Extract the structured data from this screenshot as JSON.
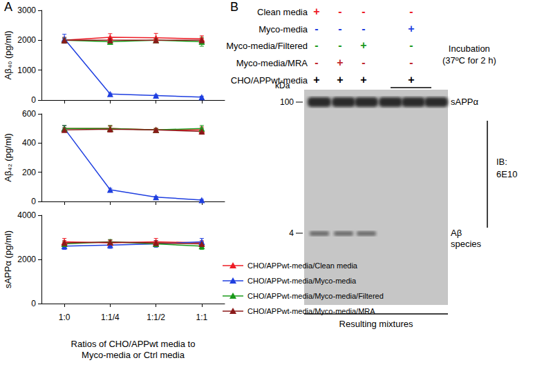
{
  "chart_data": [
    {
      "type": "line",
      "y_label": "Aβ₄₀ (pg/ml)",
      "categories": [
        null,
        null,
        null,
        null
      ],
      "ylim": [
        0,
        3000
      ],
      "yticks": [
        0,
        1000,
        2000,
        3000
      ],
      "grid": false,
      "tick_labels": "y",
      "series": [
        {
          "name": "CHO/APPwt-media/Clean media",
          "color": "#ee1c25",
          "marker": "triangle",
          "values": [
            2000,
            2100,
            2080,
            2050
          ],
          "errors": [
            100,
            120,
            150,
            100
          ]
        },
        {
          "name": "CHO/APPwt-media/Myco-media",
          "color": "#1f3fe0",
          "marker": "triangle",
          "values": [
            2050,
            200,
            150,
            100
          ],
          "errors": [
            150,
            30,
            30,
            30
          ]
        },
        {
          "name": "CHO/APPwt-media/Myco-media/Filtered",
          "color": "#1a9a1a",
          "marker": "triangle",
          "values": [
            2000,
            1950,
            2000,
            1950
          ],
          "errors": [
            80,
            80,
            80,
            150
          ]
        },
        {
          "name": "CHO/APPwt-media/Myco-media/MRA",
          "color": "#8b1a1a",
          "marker": "triangle",
          "values": [
            2000,
            2000,
            2000,
            2000
          ],
          "errors": [
            60,
            60,
            60,
            60
          ]
        }
      ]
    },
    {
      "type": "line",
      "y_label": "Aβ₄₂ (pg/ml)",
      "categories": [
        null,
        null,
        null,
        null
      ],
      "ylim": [
        0,
        600
      ],
      "yticks": [
        0,
        200,
        400,
        600
      ],
      "grid": false,
      "tick_labels": "y",
      "series": [
        {
          "name": "CHO/APPwt-media/Clean media",
          "color": "#ee1c25",
          "marker": "triangle",
          "values": [
            500,
            500,
            490,
            490
          ],
          "errors": [
            20,
            20,
            10,
            20
          ]
        },
        {
          "name": "CHO/APPwt-media/Myco-media",
          "color": "#1f3fe0",
          "marker": "triangle",
          "values": [
            500,
            80,
            30,
            10
          ],
          "errors": [
            20,
            10,
            5,
            5
          ]
        },
        {
          "name": "CHO/APPwt-media/Myco-media/Filtered",
          "color": "#1a9a1a",
          "marker": "triangle",
          "values": [
            500,
            500,
            490,
            500
          ],
          "errors": [
            20,
            20,
            10,
            20
          ]
        },
        {
          "name": "CHO/APPwt-media/Myco-media/MRA",
          "color": "#8b1a1a",
          "marker": "triangle",
          "values": [
            490,
            495,
            490,
            480
          ],
          "errors": [
            15,
            20,
            10,
            20
          ]
        }
      ]
    },
    {
      "type": "line",
      "y_label": "sAPPα (pg/ml)",
      "x_label": "Ratios of CHO/APPwt media to\nMyco-media or Ctrl media",
      "categories": [
        "1:0",
        "1:1/4",
        "1:1/2",
        "1:1"
      ],
      "ylim": [
        0,
        4000
      ],
      "yticks": [
        0,
        2000,
        4000
      ],
      "grid": false,
      "tick_labels": true,
      "series": [
        {
          "name": "CHO/APPwt-media/Clean media",
          "color": "#ee1c25",
          "marker": "triangle",
          "values": [
            2800,
            2750,
            2800,
            2750
          ],
          "errors": [
            150,
            100,
            150,
            100
          ]
        },
        {
          "name": "CHO/APPwt-media/Myco-media",
          "color": "#1f3fe0",
          "marker": "triangle",
          "values": [
            2600,
            2650,
            2700,
            2800
          ],
          "errors": [
            150,
            150,
            150,
            150
          ]
        },
        {
          "name": "CHO/APPwt-media/Myco-media/Filtered",
          "color": "#1a9a1a",
          "marker": "triangle",
          "values": [
            2700,
            2800,
            2700,
            2600
          ],
          "errors": [
            100,
            100,
            100,
            150
          ]
        },
        {
          "name": "CHO/APPwt-media/Myco-media/MRA",
          "color": "#8b1a1a",
          "marker": "triangle",
          "values": [
            2750,
            2780,
            2750,
            2700
          ],
          "errors": [
            100,
            100,
            100,
            100
          ]
        }
      ]
    }
  ],
  "panel_labels": [
    "A",
    "B"
  ],
  "blot": {
    "rows": [
      {
        "label": "Clean media",
        "color": "#ee1c25",
        "signs": [
          "+",
          "-",
          "-",
          "-"
        ]
      },
      {
        "label": "Myco-media",
        "color": "#1f3fe0",
        "signs": [
          "-",
          "-",
          "-",
          "+"
        ]
      },
      {
        "label": "Myco-media/Filtered",
        "color": "#1a9a1a",
        "signs": [
          "-",
          "-",
          "+",
          "-"
        ]
      },
      {
        "label": "Myco-media/MRA",
        "color": "#c0282d",
        "signs": [
          "-",
          "+",
          "-",
          "-"
        ]
      },
      {
        "label": "CHO/APPwt-media",
        "color": "#000000",
        "signs": [
          "+",
          "+",
          "+",
          "+"
        ]
      }
    ],
    "incubation": "Incubation\n(37ºC for 2 h)",
    "kda_label": "kDa",
    "markers": [
      {
        "text": "100",
        "band": "sAPPα"
      },
      {
        "text": "4",
        "band": "Aβ\nspecies"
      }
    ],
    "lane_bands": {
      "sAPPα": [
        true,
        true,
        true,
        true,
        true,
        true
      ],
      "Aβ\nspecies": [
        true,
        true,
        true,
        false,
        false,
        false
      ]
    },
    "antibody": "IB:\n6E10",
    "footer": "Resulting mixtures"
  }
}
